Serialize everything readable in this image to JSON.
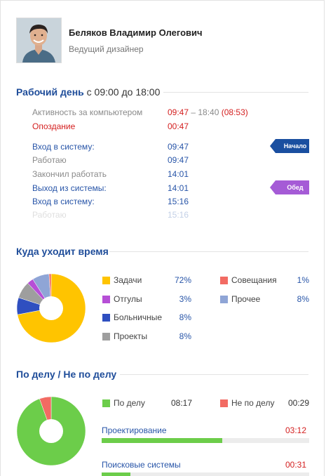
{
  "profile": {
    "name": "Беляков Владимир Олегович",
    "role": "Ведущий дизайнер"
  },
  "workday": {
    "title": "Рабочий день",
    "hours": "с 09:00 до 18:00",
    "rows": [
      {
        "label": "Активность за компьютером",
        "value_start": "09:47",
        "value_sep": " – 18:40 ",
        "value_extra": "(08:53)"
      },
      {
        "label": "Опоздание",
        "value": "00:47"
      },
      {
        "label": "Вход в систему:",
        "value": "09:47"
      },
      {
        "label": "Работаю",
        "value": "09:47"
      },
      {
        "label": "Закончил работать",
        "value": "14:01"
      },
      {
        "label": "Выход из системы:",
        "value": "14:01"
      },
      {
        "label": "Вход в систему:",
        "value": "15:16"
      },
      {
        "label": "Работаю",
        "value": "15:16"
      }
    ],
    "badges": {
      "start": "Начало",
      "lunch": "Обед"
    }
  },
  "time_spent": {
    "title": "Куда уходит время",
    "legend": [
      {
        "label": "Задачи",
        "pct": "72%",
        "color": "#ffc400"
      },
      {
        "label": "Совещания",
        "pct": "1%",
        "color": "#f26b63"
      },
      {
        "label": "Отгулы",
        "pct": "3%",
        "color": "#b64fd6"
      },
      {
        "label": "Прочее",
        "pct": "8%",
        "color": "#8fa5d6"
      },
      {
        "label": "Больничные",
        "pct": "8%",
        "color": "#2f4fc0"
      },
      {
        "label": "Проекты",
        "pct": "8%",
        "color": "#9e9e9e"
      }
    ]
  },
  "relevance": {
    "title": "По делу / Не по делу",
    "on_task": {
      "label": "По делу",
      "value": "08:17",
      "color": "#6ccd4a"
    },
    "off_task": {
      "label": "Не по делу",
      "value": "00:29",
      "color": "#f26b63"
    },
    "bars": [
      {
        "label": "Проектирование",
        "value": "03:12",
        "fraction": 0.58
      },
      {
        "label": "Поисковые системы",
        "value": "00:31",
        "fraction": 0.14
      }
    ]
  },
  "chart_data": [
    {
      "type": "pie",
      "title": "Куда уходит время",
      "categories": [
        "Задачи",
        "Больничные",
        "Проекты",
        "Отгулы",
        "Прочее",
        "Совещания"
      ],
      "values": [
        72,
        8,
        8,
        3,
        8,
        1
      ],
      "colors": [
        "#ffc400",
        "#2f4fc0",
        "#9e9e9e",
        "#b64fd6",
        "#8fa5d6",
        "#f26b63"
      ]
    },
    {
      "type": "pie",
      "title": "По делу / Не по делу",
      "categories": [
        "По делу",
        "Не по делу"
      ],
      "values": [
        497,
        29
      ],
      "colors": [
        "#6ccd4a",
        "#f26b63"
      ]
    }
  ]
}
